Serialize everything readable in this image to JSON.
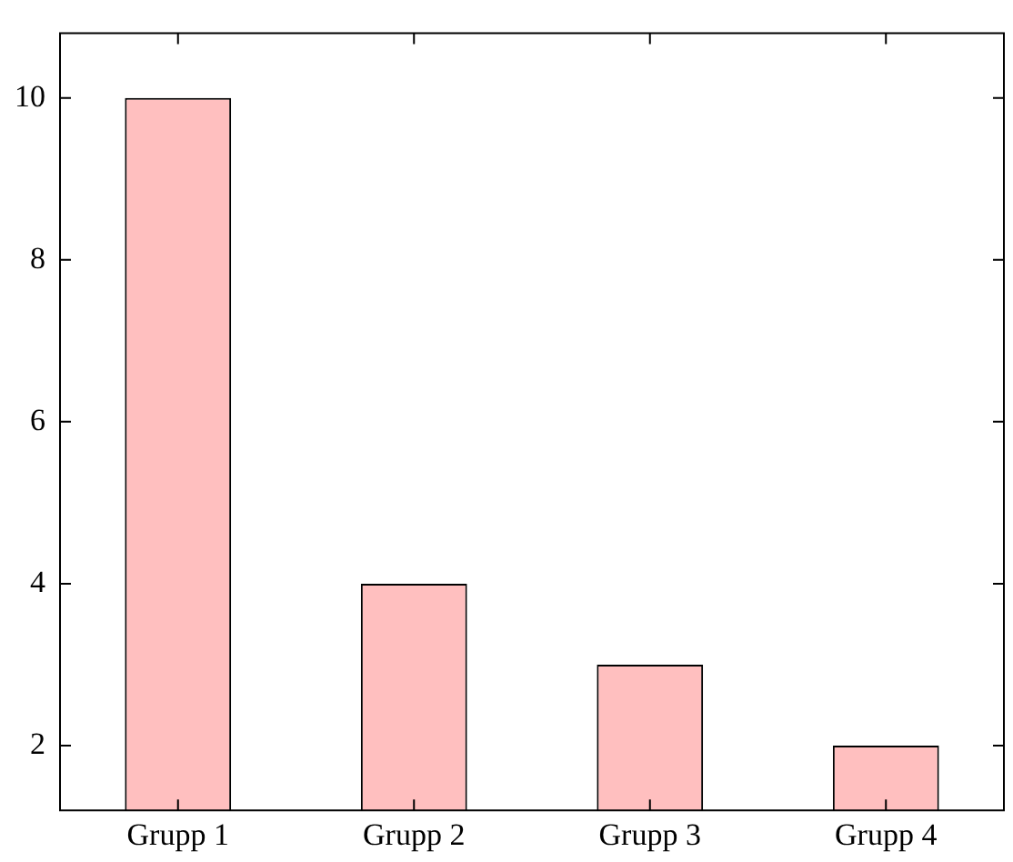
{
  "chart_data": {
    "type": "bar",
    "categories": [
      "Grupp 1",
      "Grupp 2",
      "Grupp 3",
      "Grupp 4"
    ],
    "values": [
      10,
      4,
      3,
      2
    ],
    "color": "#ffbfbf",
    "ylim": [
      1.2,
      10.8
    ],
    "yticks": [
      2,
      4,
      6,
      8,
      10
    ],
    "grid": false,
    "legend": false
  }
}
